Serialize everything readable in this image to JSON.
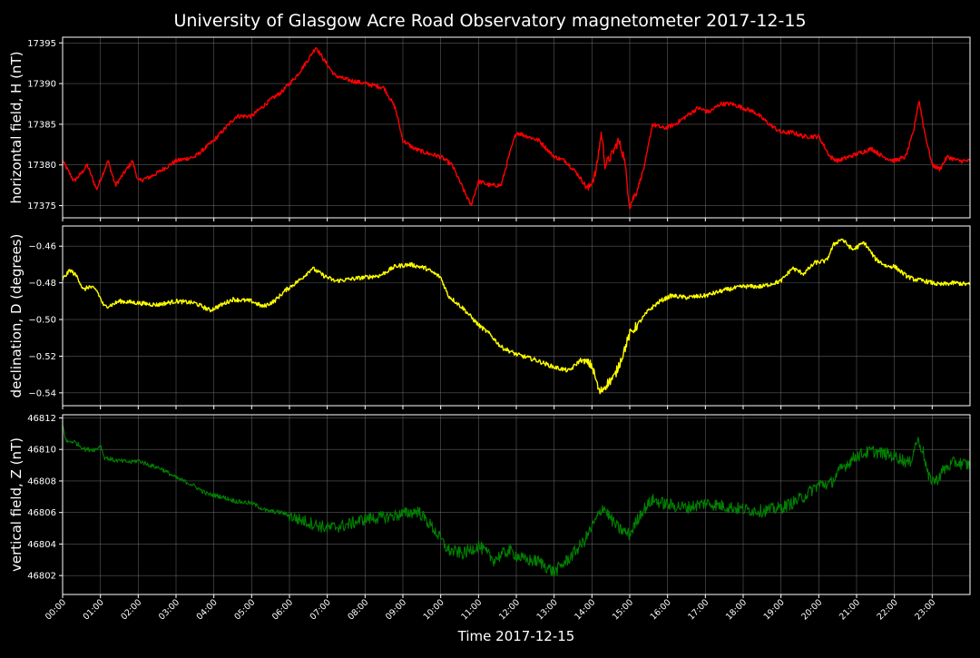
{
  "title": "University of Glasgow Acre Road Observatory magnetometer 2017-12-15",
  "xlabel": "Time 2017-12-15",
  "colors": {
    "background": "#000000",
    "axes": "#ffffff",
    "grid": "#808080",
    "H": "#ff0000",
    "D": "#ffff00",
    "Z": "#008000"
  },
  "chart_data": [
    {
      "type": "line",
      "name": "H",
      "ylabel": "horizontal field, H (nT)",
      "ylim": [
        17373.5,
        17395.7
      ],
      "yticks": [
        "17375",
        "17380",
        "17385",
        "17390",
        "17395"
      ],
      "yticks_values": [
        17375,
        17380,
        17385,
        17390,
        17395
      ],
      "x_hours": [
        0,
        0.3,
        0.5,
        0.65,
        0.9,
        1.2,
        1.4,
        1.7,
        1.85,
        2.0,
        2.3,
        2.5,
        3.0,
        3.5,
        4.0,
        4.3,
        4.6,
        5.0,
        5.5,
        5.8,
        6.2,
        6.5,
        6.7,
        6.9,
        7.2,
        7.5,
        8.0,
        8.5,
        8.8,
        9.0,
        9.3,
        9.6,
        10.0,
        10.3,
        10.6,
        10.8,
        11.0,
        11.3,
        11.6,
        11.8,
        12.0,
        12.3,
        12.6,
        13.0,
        13.3,
        13.6,
        13.9,
        14.1,
        14.25,
        14.35,
        14.5,
        14.7,
        14.85,
        15.0,
        15.2,
        15.4,
        15.6,
        15.9,
        16.2,
        16.5,
        16.8,
        17.1,
        17.4,
        17.7,
        18.0,
        18.3,
        18.7,
        19.0,
        19.3,
        19.6,
        20.0,
        20.3,
        20.5,
        20.8,
        21.1,
        21.4,
        21.7,
        22.0,
        22.3,
        22.5,
        22.65,
        22.8,
        23.0,
        23.2,
        23.4,
        23.7,
        24.0
      ],
      "y": [
        17380.5,
        17378,
        17379,
        17380,
        17377,
        17380.5,
        17377.5,
        17379.5,
        17380.5,
        17378,
        17378.5,
        17379,
        17380.5,
        17381,
        17383,
        17384.5,
        17386,
        17386,
        17388,
        17389,
        17391,
        17393,
        17394.5,
        17393,
        17391,
        17390.5,
        17390,
        17389.5,
        17387,
        17383,
        17382,
        17381.5,
        17381,
        17380,
        17377,
        17375,
        17378,
        17377.5,
        17377.5,
        17381,
        17384,
        17383.5,
        17383,
        17381,
        17380.5,
        17379,
        17377,
        17379,
        17384,
        17380,
        17381,
        17383,
        17381,
        17375,
        17377,
        17380,
        17385,
        17384.5,
        17385,
        17386,
        17387,
        17386.5,
        17387.5,
        17387.5,
        17387,
        17386.5,
        17385,
        17384,
        17384,
        17383.5,
        17383.5,
        17381,
        17380.5,
        17381,
        17381.5,
        17382,
        17381,
        17380.5,
        17381,
        17384,
        17388,
        17384,
        17380,
        17379.5,
        17381,
        17380.5,
        17380.5
      ]
    },
    {
      "type": "line",
      "name": "D",
      "ylabel": "declination, D (degrees)",
      "ylim": [
        -0.547,
        -0.449
      ],
      "yticks": [
        "−0.54",
        "−0.52",
        "−0.50",
        "−0.48",
        "−0.46"
      ],
      "yticks_values": [
        -0.54,
        -0.52,
        -0.5,
        -0.48,
        -0.46
      ],
      "x_hours": [
        0,
        0.2,
        0.4,
        0.55,
        0.7,
        0.9,
        1.1,
        1.3,
        1.5,
        2.0,
        2.5,
        3.0,
        3.5,
        3.9,
        4.1,
        4.5,
        5.0,
        5.3,
        5.6,
        5.9,
        6.3,
        6.6,
        6.9,
        7.2,
        7.6,
        8.0,
        8.4,
        8.8,
        9.2,
        9.6,
        10.0,
        10.2,
        10.6,
        11.0,
        11.3,
        11.6,
        12.0,
        12.5,
        13.0,
        13.4,
        13.7,
        14.0,
        14.2,
        14.4,
        14.6,
        14.8,
        15.0,
        15.2,
        15.5,
        15.8,
        16.1,
        16.5,
        17.0,
        17.5,
        18.0,
        18.5,
        19.0,
        19.3,
        19.6,
        19.9,
        20.2,
        20.4,
        20.6,
        20.9,
        21.2,
        21.5,
        21.8,
        22.0,
        22.3,
        22.5,
        22.8,
        23.2,
        23.6,
        24.0
      ],
      "y": [
        -0.478,
        -0.473,
        -0.477,
        -0.484,
        -0.482,
        -0.484,
        -0.493,
        -0.492,
        -0.49,
        -0.491,
        -0.492,
        -0.49,
        -0.491,
        -0.495,
        -0.493,
        -0.489,
        -0.49,
        -0.493,
        -0.49,
        -0.484,
        -0.478,
        -0.472,
        -0.476,
        -0.479,
        -0.478,
        -0.477,
        -0.476,
        -0.471,
        -0.47,
        -0.472,
        -0.477,
        -0.487,
        -0.494,
        -0.503,
        -0.508,
        -0.515,
        -0.519,
        -0.522,
        -0.526,
        -0.528,
        -0.522,
        -0.525,
        -0.54,
        -0.535,
        -0.531,
        -0.52,
        -0.508,
        -0.503,
        -0.495,
        -0.49,
        -0.487,
        -0.488,
        -0.487,
        -0.484,
        -0.482,
        -0.482,
        -0.479,
        -0.472,
        -0.475,
        -0.469,
        -0.468,
        -0.459,
        -0.456,
        -0.462,
        -0.458,
        -0.467,
        -0.471,
        -0.471,
        -0.476,
        -0.478,
        -0.479,
        -0.481,
        -0.48,
        -0.481
      ]
    },
    {
      "type": "line",
      "name": "Z",
      "ylabel": "vertical field, Z (nT)",
      "ylim": [
        46800.8,
        46812.2
      ],
      "yticks": [
        "46802",
        "46804",
        "46806",
        "46808",
        "46810",
        "46812"
      ],
      "yticks_values": [
        46802,
        46804,
        46806,
        46808,
        46810,
        46812
      ],
      "x_hours": [
        0,
        0.1,
        0.3,
        0.6,
        0.9,
        1.0,
        1.1,
        1.4,
        1.8,
        2.0,
        2.3,
        2.6,
        3.0,
        3.4,
        3.8,
        4.2,
        4.6,
        5.0,
        5.4,
        5.8,
        6.2,
        6.6,
        7.0,
        7.5,
        8.0,
        8.5,
        9.0,
        9.4,
        9.8,
        10.2,
        10.6,
        11.0,
        11.4,
        11.8,
        12.2,
        12.6,
        13.0,
        13.4,
        13.8,
        14.1,
        14.3,
        14.5,
        14.7,
        15.0,
        15.3,
        15.6,
        16.0,
        16.5,
        17.0,
        17.5,
        18.0,
        18.5,
        19.0,
        19.3,
        19.6,
        20.0,
        20.3,
        20.6,
        21.0,
        21.4,
        21.8,
        22.1,
        22.4,
        22.6,
        22.75,
        22.9,
        23.1,
        23.3,
        23.6,
        24.0
      ],
      "y": [
        46811.5,
        46810.5,
        46810.5,
        46810,
        46810,
        46810.3,
        46809.5,
        46809.3,
        46809.2,
        46809.3,
        46809.0,
        46808.8,
        46808.2,
        46807.8,
        46807.2,
        46807.0,
        46806.7,
        46806.6,
        46806.1,
        46806.0,
        46805.6,
        46805.3,
        46805.0,
        46805.2,
        46805.6,
        46805.7,
        46805.9,
        46806.1,
        46805.0,
        46803.6,
        46803.4,
        46803.9,
        46803.0,
        46803.6,
        46803.0,
        46802.9,
        46802.2,
        46803.1,
        46804.2,
        46805.5,
        46806.4,
        46805.6,
        46805.0,
        46804.6,
        46806.0,
        46806.8,
        46806.5,
        46806.3,
        46806.6,
        46806.4,
        46806.2,
        46806.1,
        46806.3,
        46806.6,
        46807.0,
        46807.8,
        46807.8,
        46808.8,
        46809.6,
        46809.9,
        46809.7,
        46809.5,
        46809.1,
        46810.6,
        46810.0,
        46808.2,
        46808.0,
        46808.7,
        46809.2,
        46809.0
      ]
    }
  ],
  "xticks": [
    "00:00",
    "01:00",
    "02:00",
    "03:00",
    "04:00",
    "05:00",
    "06:00",
    "07:00",
    "08:00",
    "09:00",
    "10:00",
    "11:00",
    "12:00",
    "13:00",
    "14:00",
    "15:00",
    "16:00",
    "17:00",
    "18:00",
    "19:00",
    "20:00",
    "21:00",
    "22:00",
    "23:00"
  ]
}
